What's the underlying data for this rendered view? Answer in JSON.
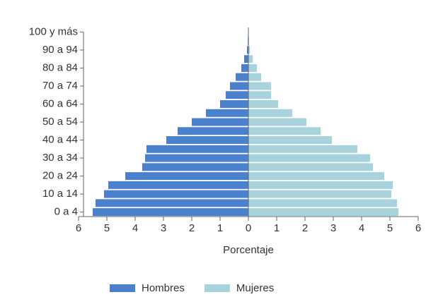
{
  "chart_data": {
    "type": "pyramid",
    "categories": [
      "0 a 4",
      null,
      "10 a 14",
      null,
      "20 a 24",
      null,
      "30 a 34",
      null,
      "40 a 44",
      null,
      "50 a 54",
      null,
      "60 a 64",
      null,
      "70 a 74",
      null,
      "80 a 84",
      null,
      "90 a 94",
      null,
      "100 y más"
    ],
    "series": [
      {
        "name": "Hombres",
        "color": "#4a80cc",
        "values": [
          -5.5,
          -5.4,
          -5.1,
          -4.95,
          -4.35,
          -3.75,
          -3.65,
          -3.6,
          -2.9,
          -2.5,
          -2.0,
          -1.5,
          -1.0,
          -0.8,
          -0.65,
          -0.45,
          -0.25,
          -0.15,
          -0.05,
          -0.02,
          0
        ]
      },
      {
        "name": "Mujeres",
        "color": "#a8d3dc",
        "values": [
          5.3,
          5.25,
          5.05,
          5.1,
          4.8,
          4.4,
          4.3,
          3.85,
          2.95,
          2.55,
          2.05,
          1.55,
          1.05,
          0.8,
          0.8,
          0.45,
          0.3,
          0.15,
          0.05,
          0.02,
          0
        ]
      }
    ],
    "xlabel": "Porcentaje",
    "xlim": [
      -6,
      6
    ],
    "xticks": [
      {
        "value": -6,
        "label": "6"
      },
      {
        "value": -5,
        "label": "5"
      },
      {
        "value": -4,
        "label": "4"
      },
      {
        "value": -3,
        "label": "3"
      },
      {
        "value": -2,
        "label": "2"
      },
      {
        "value": -1,
        "label": "1"
      },
      0,
      1,
      2,
      3,
      4,
      5,
      6
    ],
    "legend": "bottom"
  }
}
